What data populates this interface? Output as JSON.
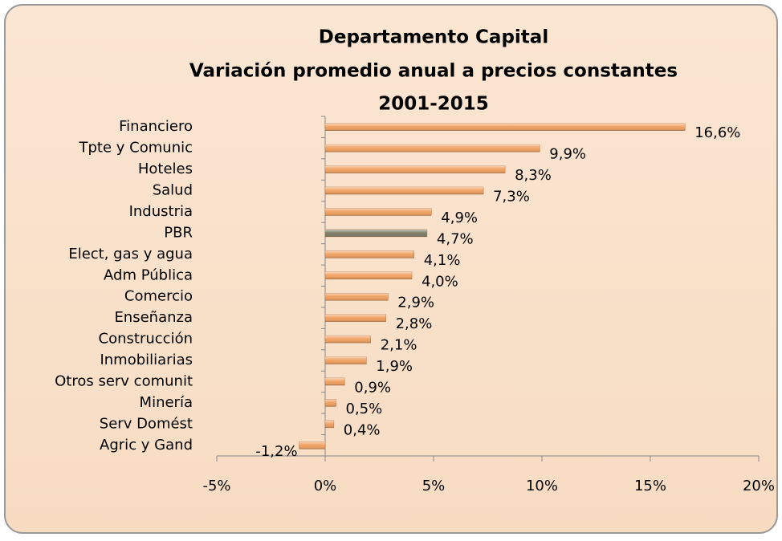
{
  "chart_data": {
    "type": "hbar",
    "title": [
      "Departamento Capital",
      "Variación promedio anual a precios constantes",
      "2001-2015"
    ],
    "categories": [
      "Financiero",
      "Tpte y Comunic",
      "Hoteles",
      "Salud",
      "Industria",
      "PBR",
      "Elect, gas y agua",
      "Adm Pública",
      "Comercio",
      "Enseñanza",
      "Construcción",
      "Inmobiliarias",
      "Otros serv comunit",
      "Minería",
      "Serv Domést",
      "Agric y Gand"
    ],
    "values": [
      16.6,
      9.9,
      8.3,
      7.3,
      4.9,
      4.7,
      4.1,
      4.0,
      2.9,
      2.8,
      2.1,
      1.9,
      0.9,
      0.5,
      0.4,
      -1.2
    ],
    "value_labels": [
      "16,6%",
      "9,9%",
      "8,3%",
      "7,3%",
      "4,9%",
      "4,7%",
      "4,1%",
      "4,0%",
      "2,9%",
      "2,8%",
      "2,1%",
      "1,9%",
      "0,9%",
      "0,5%",
      "0,4%",
      "-1,2%"
    ],
    "colors": [
      "#f0a060",
      "#f0a060",
      "#f0a060",
      "#f0a060",
      "#f0a060",
      "#7b7b66",
      "#f0a060",
      "#f0a060",
      "#f0a060",
      "#f0a060",
      "#f0a060",
      "#f0a060",
      "#f0a060",
      "#f0a060",
      "#f0a060",
      "#f0a060"
    ],
    "xlim": [
      -5,
      20
    ],
    "xticks": [
      {
        "value": -5,
        "label": "-5%"
      },
      {
        "value": 0,
        "label": "0%"
      },
      {
        "value": 5,
        "label": "5%"
      },
      {
        "value": 10,
        "label": "10%"
      },
      {
        "value": 15,
        "label": "15%"
      },
      {
        "value": 20,
        "label": "20%"
      }
    ]
  }
}
